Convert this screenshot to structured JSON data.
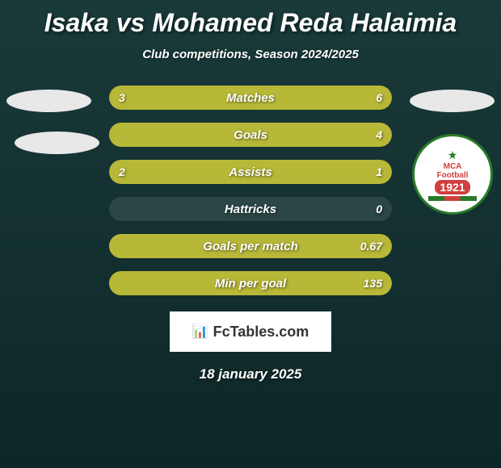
{
  "title": "Isaka vs Mohamed Reda Halaimia",
  "subtitle": "Club competitions, Season 2024/2025",
  "badge": {
    "text_top": "MCA",
    "text_mid": "Football",
    "year": "1921"
  },
  "stats": [
    {
      "label": "Matches",
      "left_val": "3",
      "right_val": "6",
      "left_pct": 33,
      "right_pct": 67
    },
    {
      "label": "Goals",
      "left_val": "",
      "right_val": "4",
      "left_pct": 0,
      "right_pct": 100
    },
    {
      "label": "Assists",
      "left_val": "2",
      "right_val": "1",
      "left_pct": 67,
      "right_pct": 33
    },
    {
      "label": "Hattricks",
      "left_val": "",
      "right_val": "0",
      "left_pct": 0,
      "right_pct": 0
    },
    {
      "label": "Goals per match",
      "left_val": "",
      "right_val": "0.67",
      "left_pct": 0,
      "right_pct": 100
    },
    {
      "label": "Min per goal",
      "left_val": "",
      "right_val": "135",
      "left_pct": 0,
      "right_pct": 100
    }
  ],
  "logo_text": "FcTables.com",
  "date": "18 january 2025",
  "colors": {
    "bar": "#b8b838",
    "bar_track": "rgba(255,255,255,0.1)",
    "bg_top": "#1a3a3a",
    "bg_bottom": "#0d2626"
  }
}
